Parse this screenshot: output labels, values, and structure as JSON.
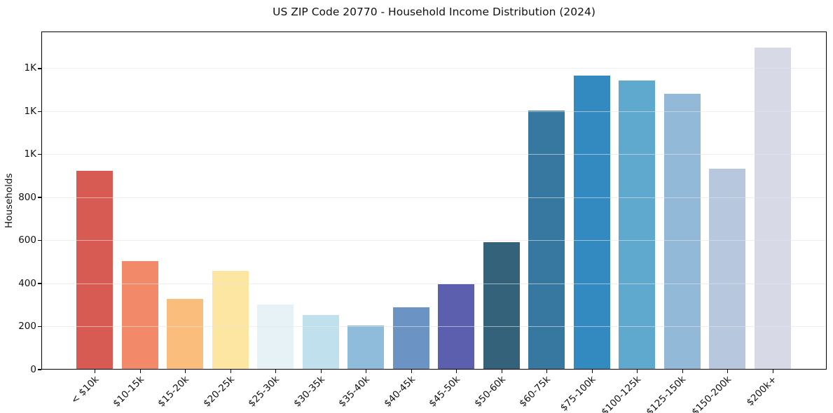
{
  "chart": {
    "title": "US ZIP Code 20770 - Household Income Distribution (2024)",
    "ylabel": "Households"
  },
  "chart_data": {
    "type": "bar",
    "title": "US ZIP Code 20770 - Household Income Distribution (2024)",
    "xlabel": "",
    "ylabel": "Households",
    "categories": [
      "< $10k",
      "$10-15k",
      "$15-20k",
      "$20-25k",
      "$25-30k",
      "$30-35k",
      "$35-40k",
      "$40-45k",
      "$45-50k",
      "$50-60k",
      "$60-75k",
      "$75-100k",
      "$100-125k",
      "$125-150k",
      "$150-200k",
      "$200k+"
    ],
    "values": [
      920,
      500,
      325,
      455,
      300,
      250,
      202,
      288,
      395,
      590,
      1200,
      1365,
      1340,
      1280,
      930,
      1495
    ],
    "bar_colors": [
      "#d85b53",
      "#f28a6a",
      "#fbbd7b",
      "#fde6a2",
      "#e7f2f7",
      "#c0e0ed",
      "#8ebcda",
      "#6b94c4",
      "#5c5fae",
      "#35627b",
      "#36789f",
      "#338ac0",
      "#5fa8ce",
      "#93b9d8",
      "#b7c8de",
      "#d7d9e6"
    ],
    "ylim": [
      0,
      1572
    ],
    "yticks": {
      "values": [
        0,
        200,
        400,
        600,
        800,
        1000,
        1200,
        1400
      ],
      "labels": [
        "0",
        "200",
        "400",
        "600",
        "800",
        "1K",
        "1K",
        "1K"
      ]
    },
    "grid": true,
    "grid_axis": "y",
    "legend": false
  }
}
